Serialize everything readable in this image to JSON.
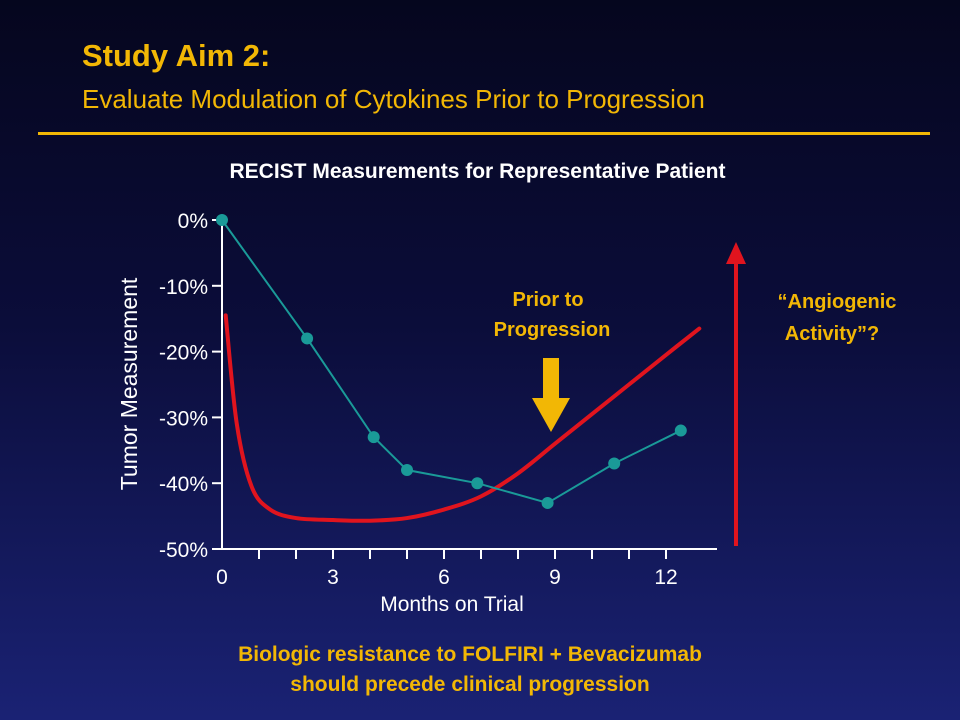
{
  "slide": {
    "title": "Study Aim 2:",
    "subtitle": "Evaluate Modulation of Cytokines Prior to Progression",
    "footer_line1": "Biologic resistance to FOLFIRI + Bevacizumab",
    "footer_line2": "should precede clinical progression"
  },
  "colors": {
    "accent_yellow": "#f2b705",
    "series_teal": "#1a9a98",
    "curve_red": "#e0141e",
    "text_white": "#ffffff"
  },
  "chart_data": {
    "type": "line",
    "title": "RECIST Measurements for Representative Patient",
    "xlabel": "Months on Trial",
    "ylabel": "Tumor Measurement",
    "xlim": [
      0,
      13
    ],
    "ylim": [
      -50,
      0
    ],
    "x_ticks": [
      0,
      3,
      6,
      9,
      12
    ],
    "x_tick_labels": [
      "0",
      "3",
      "6",
      "9",
      "12"
    ],
    "y_ticks": [
      0,
      -10,
      -20,
      -30,
      -40,
      -50
    ],
    "y_tick_labels": [
      "0%",
      "-10%",
      "-20%",
      "-30%",
      "-40%",
      "-50%"
    ],
    "grid": false,
    "series": [
      {
        "marker": "circle",
        "x": [
          0,
          2.3,
          4.1,
          5.0,
          6.9,
          8.8,
          10.6,
          12.4
        ],
        "y": [
          0,
          -18,
          -33,
          -38,
          -40,
          -43,
          -37,
          -32
        ]
      }
    ],
    "trend_curve": {
      "x": [
        0.1,
        0.4,
        0.8,
        1.3,
        2,
        3,
        4,
        5,
        6,
        7,
        8,
        9,
        10,
        11,
        12,
        12.9
      ],
      "y": [
        -14.5,
        -31,
        -40.5,
        -44,
        -45.3,
        -45.6,
        -45.7,
        -45.3,
        -44,
        -42,
        -38.5,
        -34,
        -29.5,
        -25,
        -20.5,
        -16.5
      ]
    },
    "annotations": {
      "prior_line1": "Prior to",
      "prior_line2": "Progression",
      "angio_line1": "“Angiogenic",
      "angio_line2": "Activity”?"
    }
  }
}
